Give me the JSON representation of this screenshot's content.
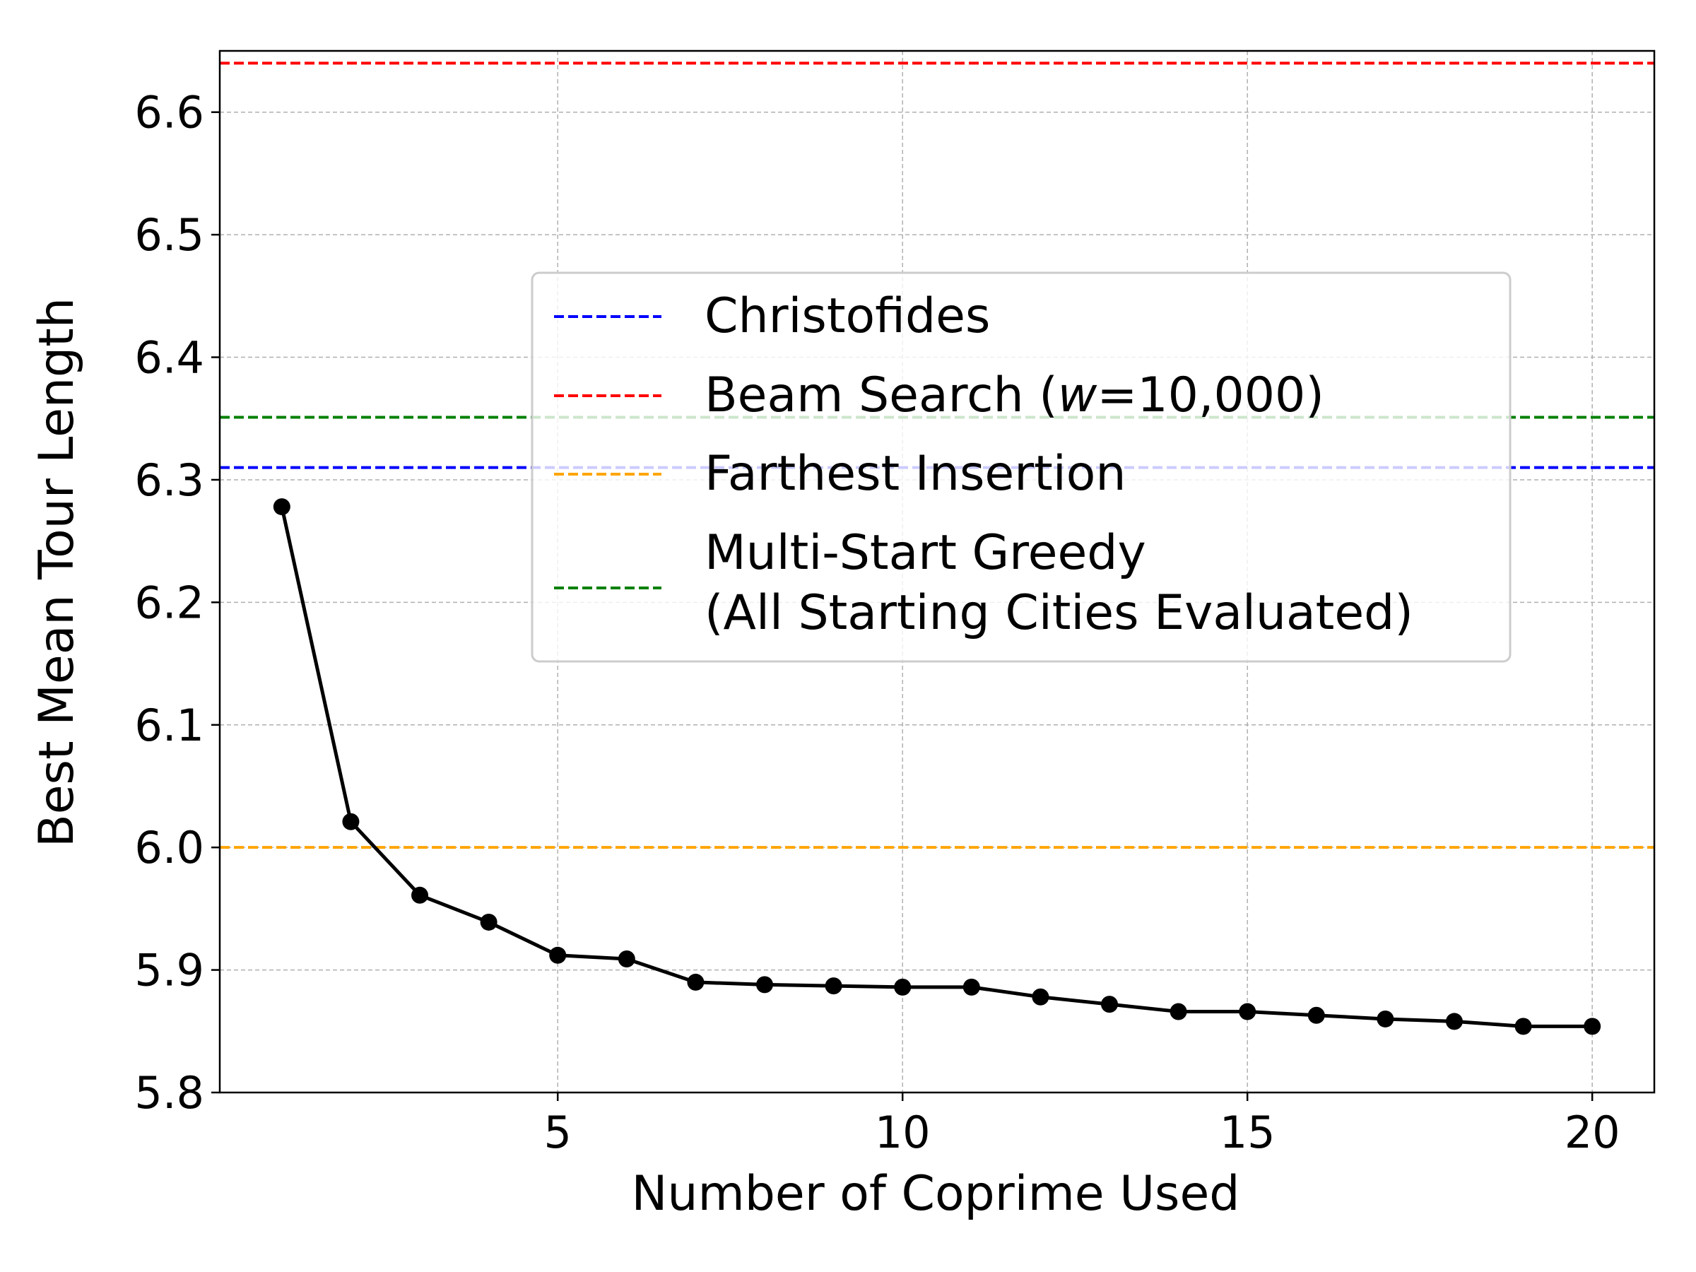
{
  "chart_data": {
    "type": "line",
    "xlabel": "Number of Coprime Used",
    "ylabel": "Best Mean Tour Length",
    "xlim": [
      0.1,
      20.9
    ],
    "ylim": [
      5.8,
      6.65
    ],
    "xticks": [
      {
        "value": 5,
        "label": "5"
      },
      {
        "value": 10,
        "label": "10"
      },
      {
        "value": 15,
        "label": "15"
      },
      {
        "value": 20,
        "label": "20"
      }
    ],
    "yticks": [
      {
        "value": 5.8,
        "label": "5.8"
      },
      {
        "value": 5.9,
        "label": "5.9"
      },
      {
        "value": 6.0,
        "label": "6.0"
      },
      {
        "value": 6.1,
        "label": "6.1"
      },
      {
        "value": 6.2,
        "label": "6.2"
      },
      {
        "value": 6.3,
        "label": "6.3"
      },
      {
        "value": 6.4,
        "label": "6.4"
      },
      {
        "value": 6.5,
        "label": "6.5"
      },
      {
        "value": 6.6,
        "label": "6.6"
      }
    ],
    "grid": true,
    "legend_position": "center-right",
    "series": [
      {
        "color": "#000000",
        "marker": "circle",
        "x": [
          1,
          2,
          3,
          4,
          5,
          6,
          7,
          8,
          9,
          10,
          11,
          12,
          13,
          14,
          15,
          16,
          17,
          18,
          19,
          20
        ],
        "y": [
          6.278,
          6.021,
          5.961,
          5.939,
          5.912,
          5.909,
          5.89,
          5.888,
          5.887,
          5.886,
          5.886,
          5.878,
          5.872,
          5.866,
          5.866,
          5.863,
          5.86,
          5.858,
          5.854,
          5.854
        ]
      }
    ],
    "reference_lines": [
      {
        "name": "Christofides",
        "y": 6.31,
        "color": "#0000ff",
        "style": "dashed"
      },
      {
        "name": "Beam Search (w=10,000)",
        "name_prefix": "Beam Search (",
        "name_italic": "w",
        "name_suffix": "=10,000)",
        "y": 6.64,
        "color": "#ff0000",
        "style": "dashed"
      },
      {
        "name": "Farthest Insertion",
        "y": 6.0,
        "color": "#ffa500",
        "style": "dashed"
      },
      {
        "name": "Multi-Start Greedy (All Starting Cities Evaluated)",
        "name_line1": "Multi-Start Greedy",
        "name_line2": "(All Starting Cities Evaluated)",
        "y": 6.351,
        "color": "#008000",
        "style": "dashed"
      }
    ]
  }
}
